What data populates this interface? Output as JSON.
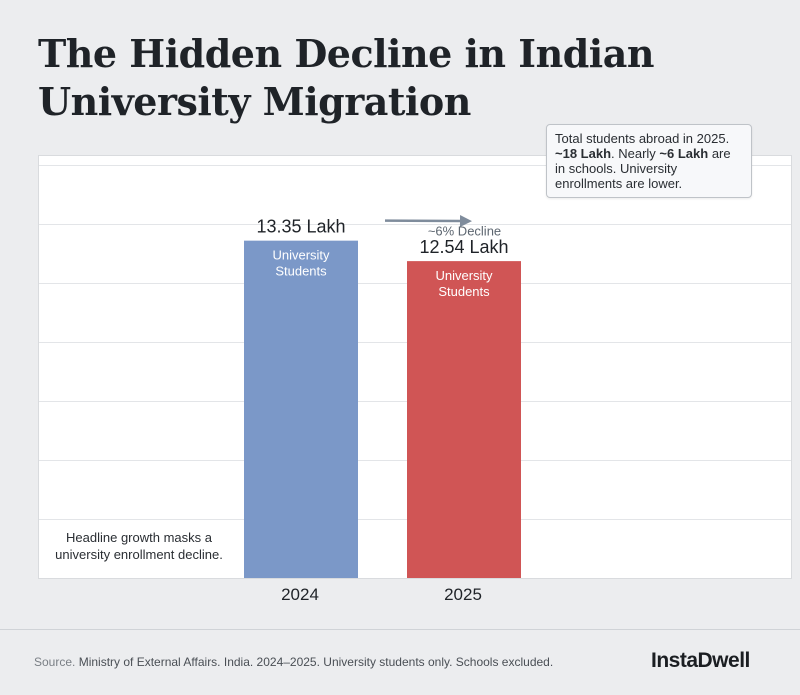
{
  "title": "The Hidden Decline in Indian University Migration",
  "callout": {
    "line1": "Total students abroad in 2025.",
    "strong1": "~18 Lakh",
    "mid": ". Nearly ",
    "strong2": "~6 Lakh",
    "rest": " are in schools. University enrollments are lower."
  },
  "annotation": "Headline growth masks a university enrollment decline.",
  "source": {
    "label": "Source.",
    "text": " Ministry of External Affairs. India. 2024–2025. University students only. Schools excluded."
  },
  "brand": "InstaDwell",
  "chart_data": {
    "type": "bar",
    "categories": [
      "2024",
      "2025"
    ],
    "values": [
      13.35,
      12.54
    ],
    "value_labels": [
      "13.35 Lakh",
      "12.54 Lakh"
    ],
    "bar_labels": [
      [
        "University",
        "Students"
      ],
      [
        "University",
        "Students"
      ]
    ],
    "colors": [
      "#7b98c8",
      "#d05555"
    ],
    "decline_label": "~6% Decline",
    "grid": true,
    "ylim": [
      0,
      16.7
    ]
  }
}
